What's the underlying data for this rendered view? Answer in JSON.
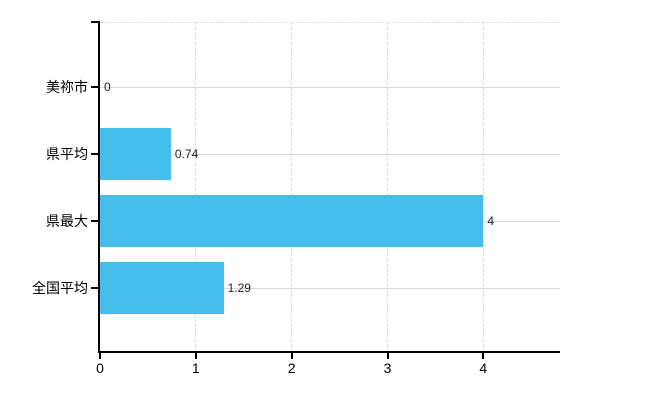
{
  "chart_data": {
    "type": "bar",
    "orientation": "horizontal",
    "title": "",
    "xlabel": "",
    "ylabel": "",
    "categories": [
      "美祢市",
      "県平均",
      "県最大",
      "全国平均"
    ],
    "values": [
      0,
      0.74,
      4,
      1.29
    ],
    "value_labels": [
      "0",
      "0.74",
      "4",
      "1.29"
    ],
    "x_ticks": [
      "0",
      "1",
      "2",
      "3",
      "4"
    ],
    "x_tick_values": [
      0,
      1,
      2,
      3,
      4
    ],
    "xlim": [
      0,
      4.8
    ],
    "grid": true,
    "legend": false,
    "bar_color": "#46BEEB",
    "axis_color": "#000000",
    "grid_color": "#D9D9D9",
    "label_color": "#222222",
    "background_color": "#FFFFFF"
  }
}
